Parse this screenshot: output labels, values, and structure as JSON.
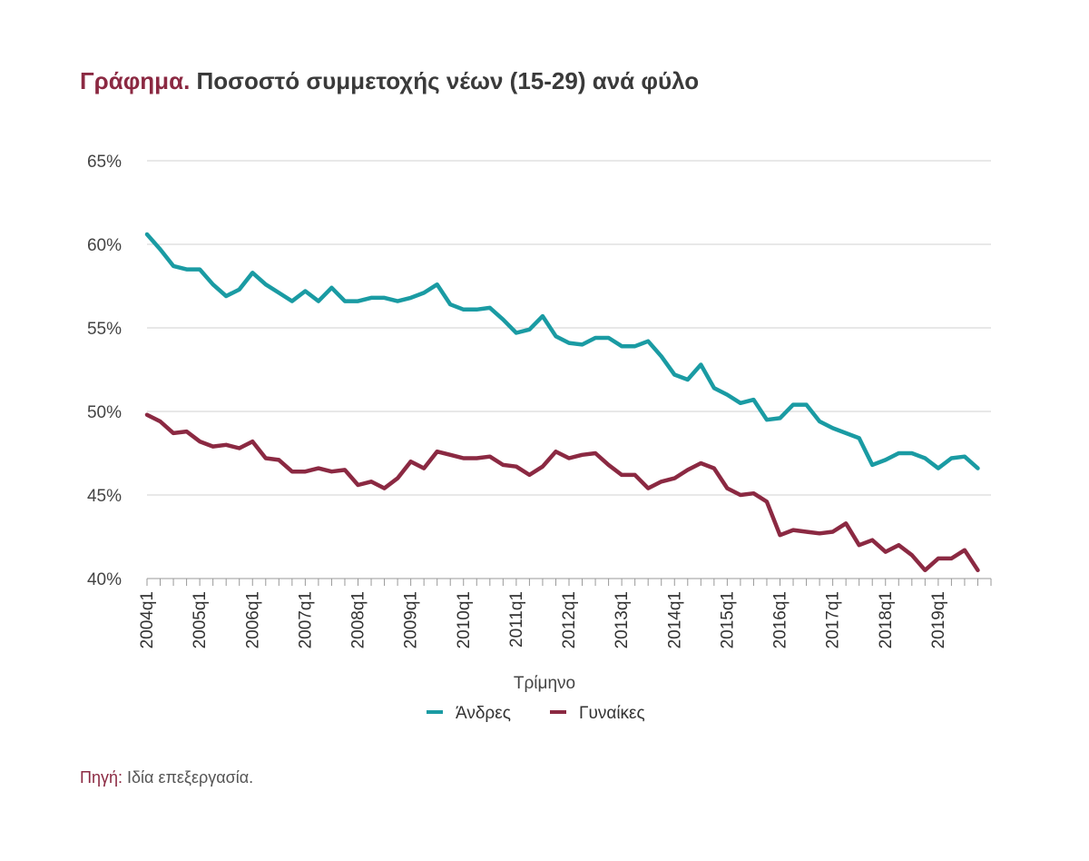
{
  "title": {
    "lead": "Γράφημα.",
    "text": " Ποσοστό συμμετοχής νέων (15-29) ανά φύλο"
  },
  "source": {
    "lead": "Πηγή:",
    "text": " Ιδία επεξεργασία."
  },
  "colors": {
    "men": "#1a9ba3",
    "women": "#8b2942",
    "grid": "#d0d0d0",
    "axis": "#999999",
    "title_accent": "#8b2942"
  },
  "chart_data": {
    "type": "line",
    "xlabel": "Τρίμηνο",
    "ylabel": "",
    "ylim": [
      40,
      65
    ],
    "yticks": [
      "40%",
      "45%",
      "50%",
      "55%",
      "60%",
      "65%"
    ],
    "grid": true,
    "legend_position": "bottom-center",
    "x_tick_labels": [
      "2004q1",
      "2005q1",
      "2006q1",
      "2007q1",
      "2008q1",
      "2009q1",
      "2010q1",
      "2011q1",
      "2012q1",
      "2013q1",
      "2014q1",
      "2015q1",
      "2016q1",
      "2017q1",
      "2018q1",
      "2019q1"
    ],
    "x_start": "2004q1",
    "x_end": "2020q1",
    "series": [
      {
        "name": "Άνδρες",
        "color": "#1a9ba3",
        "values": [
          60.6,
          59.7,
          58.7,
          58.5,
          58.5,
          57.6,
          56.9,
          57.3,
          58.3,
          57.6,
          57.1,
          56.6,
          57.2,
          56.6,
          57.4,
          56.6,
          56.6,
          56.8,
          56.8,
          56.6,
          56.8,
          57.1,
          57.6,
          56.4,
          56.1,
          56.1,
          56.2,
          55.5,
          54.7,
          54.9,
          55.7,
          54.5,
          54.1,
          54.0,
          54.4,
          54.4,
          53.9,
          53.9,
          54.2,
          53.3,
          52.2,
          51.9,
          52.8,
          51.4,
          51.0,
          50.5,
          50.7,
          49.5,
          49.6,
          50.4,
          50.4,
          49.4,
          49.0,
          48.7,
          48.4,
          46.8,
          47.1,
          47.5,
          47.5,
          47.2,
          46.6,
          47.2,
          47.3,
          46.6
        ]
      },
      {
        "name": "Γυναίκες",
        "color": "#8b2942",
        "values": [
          49.8,
          49.4,
          48.7,
          48.8,
          48.2,
          47.9,
          48.0,
          47.8,
          48.2,
          47.2,
          47.1,
          46.4,
          46.4,
          46.6,
          46.4,
          46.5,
          45.6,
          45.8,
          45.4,
          46.0,
          47.0,
          46.6,
          47.6,
          47.4,
          47.2,
          47.2,
          47.3,
          46.8,
          46.7,
          46.2,
          46.7,
          47.6,
          47.2,
          47.4,
          47.5,
          46.8,
          46.2,
          46.2,
          45.4,
          45.8,
          46.0,
          46.5,
          46.9,
          46.6,
          45.4,
          45.0,
          45.1,
          44.6,
          42.6,
          42.9,
          42.8,
          42.7,
          42.8,
          43.3,
          42.0,
          42.3,
          41.6,
          42.0,
          41.4,
          40.5,
          41.2,
          41.2,
          41.7,
          40.5
        ]
      }
    ]
  }
}
